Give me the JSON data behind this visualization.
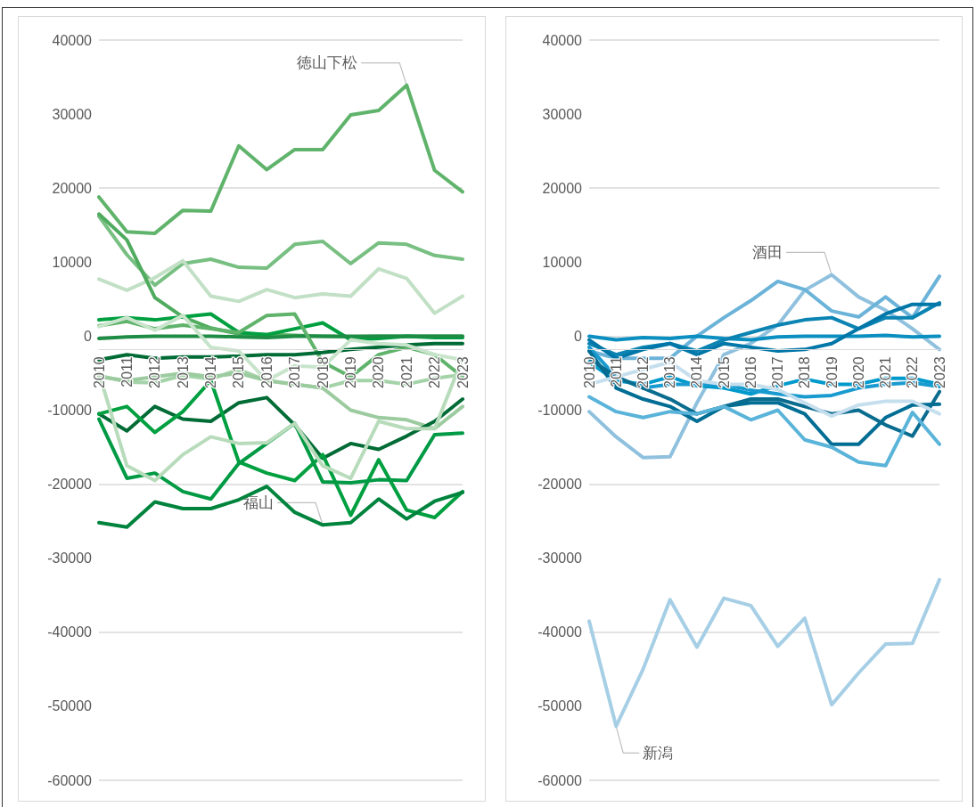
{
  "chart_data": [
    {
      "type": "line",
      "categories": [
        "2010",
        "2011",
        "2012",
        "2013",
        "2014",
        "2015",
        "2016",
        "2017",
        "2018",
        "2019",
        "2020",
        "2021",
        "2022",
        "2023"
      ],
      "ylim": [
        -60000,
        40000
      ],
      "yticks": [
        -60000,
        -50000,
        -40000,
        -30000,
        -20000,
        -10000,
        0,
        10000,
        20000,
        30000,
        40000
      ],
      "grid": "y",
      "marker": "none",
      "line_style": "solid",
      "annotations": [
        {
          "text": "徳山下松",
          "x": "2021",
          "y": 33900
        },
        {
          "text": "福山",
          "x": "2018",
          "y": -25500
        }
      ],
      "series": [
        {
          "color": "#5fb36b",
          "values": [
            18800,
            14100,
            13900,
            17000,
            16900,
            25700,
            22500,
            25200,
            25200,
            29900,
            30500,
            33900,
            22400,
            19500
          ]
        },
        {
          "color": "#78bf82",
          "values": [
            16200,
            11000,
            6900,
            9800,
            10400,
            9300,
            9200,
            12400,
            12800,
            9800,
            12600,
            12400,
            10900,
            10400
          ]
        },
        {
          "color": "#c2e0c5",
          "values": [
            7700,
            6200,
            7900,
            10200,
            5400,
            4700,
            6300,
            5200,
            5700,
            5400,
            9100,
            7800,
            3100,
            5400
          ]
        },
        {
          "color": "#4fab5e",
          "values": [
            16500,
            13000,
            5200,
            2600,
            1100,
            300,
            200,
            100,
            0,
            -100,
            0,
            0,
            0,
            0
          ]
        },
        {
          "color": "#00a040",
          "values": [
            2200,
            2500,
            2200,
            2600,
            3000,
            500,
            200,
            1000,
            1800,
            -500,
            -300,
            0,
            -200,
            -200
          ]
        },
        {
          "color": "#1e8c45",
          "values": [
            -300,
            -100,
            0,
            0,
            0,
            -100,
            -200,
            0,
            0,
            0,
            0,
            0,
            0,
            0
          ]
        },
        {
          "color": "#5fb36b",
          "values": [
            1400,
            2000,
            1000,
            1500,
            1000,
            500,
            2800,
            3000,
            -3500,
            -5500,
            -2500,
            -1500,
            -2500,
            -5500
          ]
        },
        {
          "color": "#006b35",
          "values": [
            -3200,
            -2500,
            -3000,
            -2800,
            -2800,
            -2700,
            -2500,
            -2500,
            -2200,
            -1800,
            -1500,
            -1200,
            -1000,
            -1000
          ]
        },
        {
          "color": "#c8e4cb",
          "values": [
            1300,
            2500,
            800,
            2800,
            -1500,
            -2000,
            -6000,
            -4000,
            -4200,
            -500,
            -1000,
            -1200,
            -2500,
            -3200
          ]
        },
        {
          "color": "#a5d3a9",
          "values": [
            -5300,
            -6200,
            -6300,
            -5300,
            -5800,
            -4500,
            -6000,
            -6500,
            -7000,
            -6000,
            -6000,
            -6500,
            -5700,
            -5200
          ]
        },
        {
          "color": "#9ccb9f",
          "values": [
            -5500,
            -6000,
            -5500,
            -5000,
            -5500,
            -5000,
            -6000,
            -6500,
            -7000,
            -10000,
            -11000,
            -11300,
            -12500,
            -9500
          ]
        },
        {
          "color": "#006b35",
          "values": [
            -10500,
            -12800,
            -9500,
            -11200,
            -11500,
            -9000,
            -8300,
            -12000,
            -16500,
            -14500,
            -15300,
            -13500,
            -11500,
            -8500
          ]
        },
        {
          "color": "#00a040",
          "values": [
            -10500,
            -9500,
            -13000,
            -10200,
            -6000,
            -17000,
            -18500,
            -19500,
            -16000,
            -24200,
            -16700,
            -23500,
            -24500,
            -21000
          ]
        },
        {
          "color": "#009a44",
          "values": [
            -11200,
            -19200,
            -18500,
            -21000,
            -22000,
            -17200,
            -14500,
            -11800,
            -19700,
            -19800,
            -19400,
            -19500,
            -13300,
            -13100
          ]
        },
        {
          "color": "#00843d",
          "values": [
            -25200,
            -25800,
            -22400,
            -23300,
            -23300,
            -22100,
            -20300,
            -23800,
            -25500,
            -25200,
            -22000,
            -24700,
            -22300,
            -21100
          ]
        },
        {
          "color": "#b8dcbb",
          "values": [
            -5000,
            -17500,
            -19500,
            -16000,
            -13600,
            -14500,
            -14400,
            -11800,
            -17500,
            -19200,
            -11500,
            -12500,
            -12500,
            -3000
          ]
        }
      ]
    },
    {
      "type": "line",
      "categories": [
        "2010",
        "2011",
        "2012",
        "2013",
        "2014",
        "2015",
        "2016",
        "2017",
        "2018",
        "2019",
        "2020",
        "2021",
        "2022",
        "2023"
      ],
      "ylim": [
        -60000,
        40000
      ],
      "yticks": [
        -60000,
        -50000,
        -40000,
        -30000,
        -20000,
        -10000,
        0,
        10000,
        20000,
        30000,
        40000
      ],
      "grid": "y",
      "marker": "none",
      "line_style": "solid",
      "annotations": [
        {
          "text": "酒田",
          "x": "2019",
          "y": 8300
        },
        {
          "text": "新潟",
          "x": "2011",
          "y": -52700
        }
      ],
      "series": [
        {
          "color": "#a6cfe6",
          "values": [
            -38500,
            -52700,
            -45000,
            -35600,
            -42000,
            -35400,
            -36400,
            -41900,
            -38100,
            -49800,
            -45500,
            -41600,
            -41500,
            -32900
          ]
        },
        {
          "color": "#8fc1de",
          "values": [
            -10200,
            -13600,
            -16400,
            -16300,
            -9000,
            -2500,
            -1000,
            1500,
            6200,
            8300,
            5300,
            3500,
            1000,
            -1800
          ]
        },
        {
          "color": "#6bb3d9",
          "values": [
            -2000,
            -3000,
            -3000,
            -3000,
            0,
            2500,
            4800,
            7400,
            6300,
            3400,
            2600,
            5300,
            2500,
            8100
          ]
        },
        {
          "color": "#0a8fc0",
          "values": [
            0,
            -500,
            -200,
            -300,
            0,
            -300,
            -500,
            -100,
            0,
            0,
            0,
            100,
            -100,
            0
          ]
        },
        {
          "color": "#0b84b3",
          "values": [
            -1000,
            -2500,
            -1500,
            -1000,
            -2000,
            -500,
            500,
            1500,
            2200,
            2500,
            1000,
            2500,
            2500,
            4500
          ]
        },
        {
          "color": "#0077a8",
          "values": [
            -500,
            -3000,
            -1800,
            -1000,
            -2500,
            -1000,
            -1500,
            -2000,
            -1800,
            -1000,
            1000,
            3000,
            4300,
            4300
          ]
        },
        {
          "color": "#0099cc",
          "values": [
            -3500,
            -6000,
            -6500,
            -5500,
            -6700,
            -7000,
            -7800,
            -6700,
            -5800,
            -6500,
            -6500,
            -5700,
            -5700,
            -6500
          ]
        },
        {
          "color": "#1a9bcf",
          "values": [
            -1500,
            -5500,
            -7000,
            -6500,
            -6500,
            -6500,
            -7300,
            -7800,
            -8200,
            -8000,
            -7000,
            -6500,
            -6300,
            -6800
          ]
        },
        {
          "color": "#006d94",
          "values": [
            -2000,
            -7000,
            -8500,
            -9500,
            -11500,
            -9500,
            -9000,
            -9000,
            -10500,
            -14600,
            -14600,
            -11000,
            -9300,
            -9200
          ]
        },
        {
          "color": "#0a6c8f",
          "values": [
            -3000,
            -5500,
            -7000,
            -8500,
            -10500,
            -9500,
            -8500,
            -8500,
            -9500,
            -10500,
            -10000,
            -12000,
            -13500,
            -7500
          ]
        },
        {
          "color": "#c6dfee",
          "values": [
            -6500,
            -5500,
            -4500,
            -3500,
            -6000,
            -6500,
            -6500,
            -7200,
            -9000,
            -10800,
            -9300,
            -8800,
            -8800,
            -10500
          ]
        },
        {
          "color": "#5ab4d9",
          "values": [
            -8200,
            -10200,
            -11000,
            -10200,
            -10500,
            -9500,
            -11300,
            -10000,
            -14000,
            -15000,
            -17000,
            -17500,
            -10300,
            -14600
          ]
        }
      ]
    }
  ]
}
